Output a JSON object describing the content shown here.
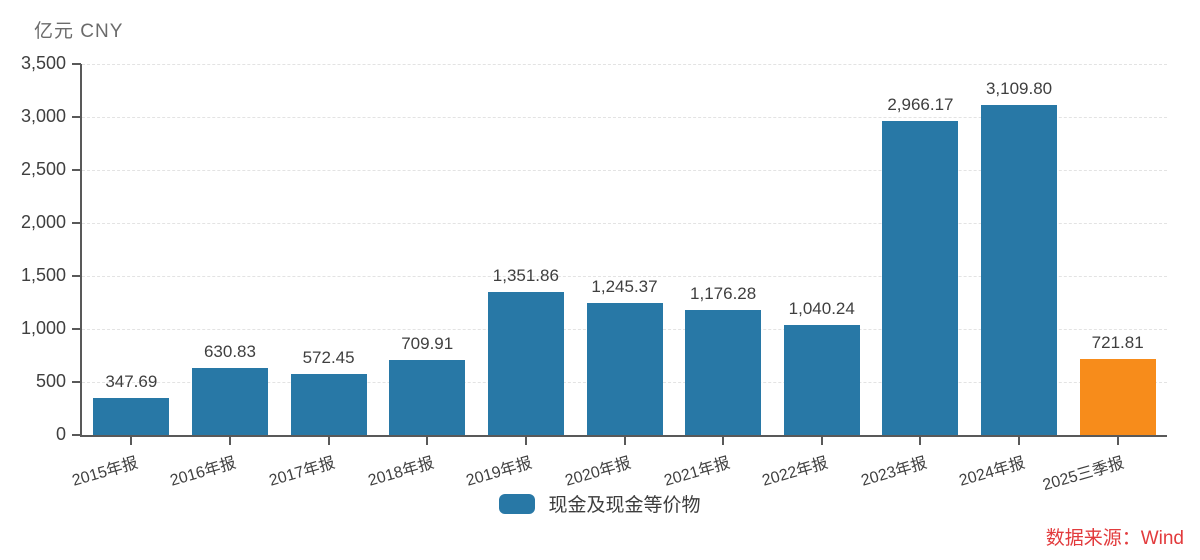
{
  "colors": {
    "bar": "#2878A6",
    "bar_highlight": "#F78C1B",
    "axis": "#595959",
    "grid": "#E3E3E3",
    "value_label": "#3F3F3F",
    "source_text": "#E23B3D"
  },
  "chart_data": {
    "type": "bar",
    "title": "",
    "unit": "亿元  CNY",
    "categories": [
      "2015年报",
      "2016年报",
      "2017年报",
      "2018年报",
      "2019年报",
      "2020年报",
      "2021年报",
      "2022年报",
      "2023年报",
      "2024年报",
      "2025三季报"
    ],
    "series": [
      {
        "name": "现金及现金等价物",
        "values": [
          347.69,
          630.83,
          572.45,
          709.91,
          1351.86,
          1245.37,
          1176.28,
          1040.24,
          2966.17,
          3109.8,
          721.81
        ]
      }
    ],
    "value_labels": [
      "347.69",
      "630.83",
      "572.45",
      "709.91",
      "1,351.86",
      "1,245.37",
      "1,176.28",
      "1,040.24",
      "2,966.17",
      "3,109.80",
      "721.81"
    ],
    "highlight_index": 10,
    "ylim": [
      0,
      3500
    ],
    "ytick_values": [
      0,
      500,
      1000,
      1500,
      2000,
      2500,
      3000,
      3500
    ],
    "ytick_labels": [
      "0",
      "500",
      "1,000",
      "1,500",
      "2,000",
      "2,500",
      "3,000",
      "3,500"
    ],
    "grid": "horizontal-dashed",
    "legend_position": "bottom-center",
    "xlabel_rotation_deg": -16,
    "source": "数据来源：Wind"
  }
}
